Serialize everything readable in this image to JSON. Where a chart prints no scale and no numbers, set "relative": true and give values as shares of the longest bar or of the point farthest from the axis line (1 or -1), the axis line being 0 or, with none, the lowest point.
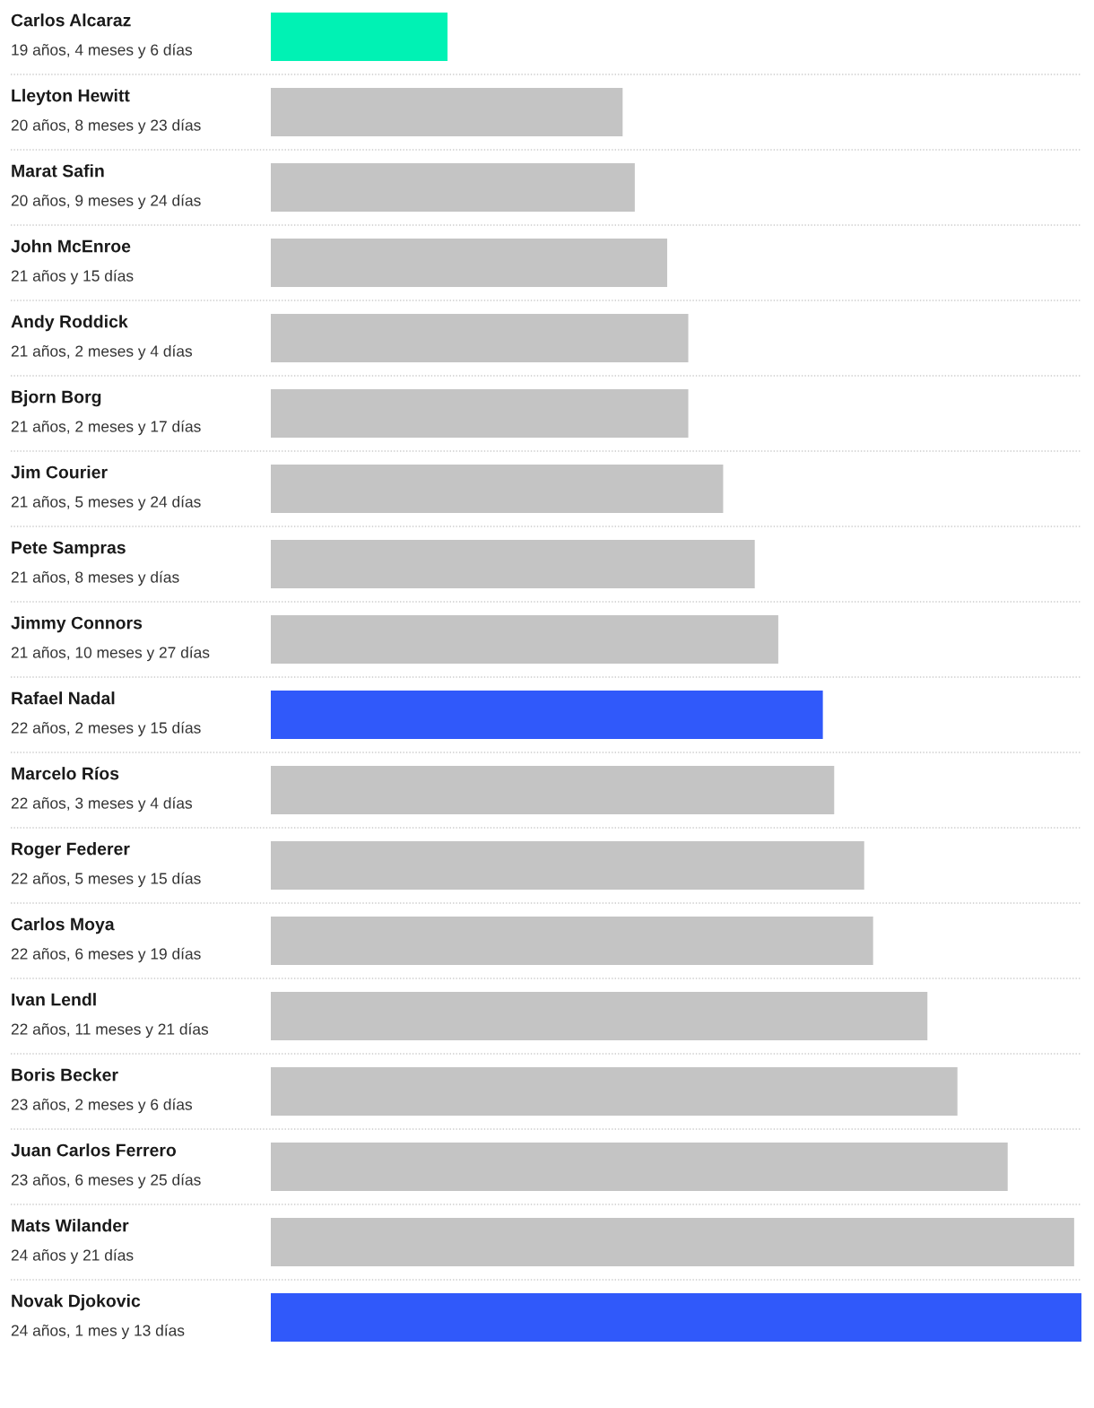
{
  "chart_data": {
    "type": "bar",
    "orientation": "horizontal",
    "relative": true,
    "categories": [
      "Carlos Alcaraz\n19 años, 4 meses y 6 días",
      "Lleyton Hewitt\n20 años, 8 meses y 23 días",
      "Marat Safin\n20 años, 9 meses y 24 días",
      "John McEnroe\n21 años y 15 días",
      "Andy Roddick\n21 años, 2 meses y 4 días",
      "Bjorn Borg\n21 años, 2 meses y 17 días",
      "Jim Courier\n21 años, 5 meses y 24 días",
      "Pete Sampras\n21 años, 8 meses y días",
      "Jimmy Connors\n21 años, 10 meses y 27 días",
      "Rafael Nadal\n22 años, 2 meses y 15 días",
      "Marcelo Ríos\n22 años, 3 meses y 4 días",
      "Roger Federer\n22 años, 5 meses y 15 días",
      "Carlos Moya\n22 años, 6 meses y 19 días",
      "Ivan Lendl\n22 años, 11 meses y 21 días",
      "Boris Becker\n23 años, 2 meses y 6 días",
      "Juan Carlos Ferrero\n23 años, 6 meses y 25 días",
      "Mats Wilander\n24 años y 21 días",
      "Novak Djokovic\n24 años, 1 mes y 13 días"
    ],
    "values": [
      0.218,
      0.434,
      0.449,
      0.489,
      0.515,
      0.515,
      0.558,
      0.597,
      0.626,
      0.681,
      0.695,
      0.732,
      0.743,
      0.81,
      0.847,
      0.909,
      0.991,
      1
    ],
    "colors": [
      "#00f2b4",
      "#c4c4c4",
      "#c4c4c4",
      "#c4c4c4",
      "#c4c4c4",
      "#c4c4c4",
      "#c4c4c4",
      "#c4c4c4",
      "#c4c4c4",
      "#3059fa",
      "#c4c4c4",
      "#c4c4c4",
      "#c4c4c4",
      "#c4c4c4",
      "#c4c4c4",
      "#c4c4c4",
      "#c4c4c4",
      "#3059fa"
    ]
  }
}
